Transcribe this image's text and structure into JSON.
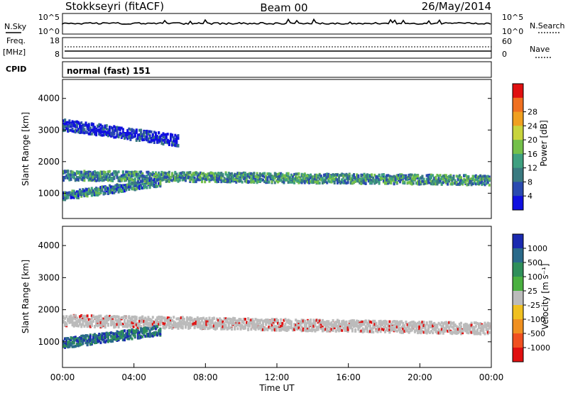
{
  "header": {
    "radar_title": "Stokkseyri (fitACF)",
    "beam_title": "Beam 00",
    "date": "26/May/2014"
  },
  "noise_panel": {
    "left_label": "N.Sky",
    "left_ticks": [
      "10^5",
      "10^0"
    ],
    "right_ticks": [
      "10^5",
      "10^0"
    ],
    "right_label": "N.Search"
  },
  "freq_panel": {
    "left_label_1": "Freq.",
    "left_label_2": "[MHz]",
    "left_ticks": [
      "18",
      "8"
    ],
    "right_ticks": [
      "60",
      "0"
    ],
    "right_label": "Nave"
  },
  "cpid_panel": {
    "label": "CPID",
    "value": "normal (fast) 151"
  },
  "colors": {
    "power_scale": [
      "#1010e0",
      "#2a4ab0",
      "#3a7a80",
      "#3fa080",
      "#74c04a",
      "#c8d43c",
      "#f0a020",
      "#f07020",
      "#e01010"
    ],
    "velocity_scale": [
      "#1a2ab0",
      "#2a6a8a",
      "#2f8f5a",
      "#4ab040",
      "#bbbbbb",
      "#f0c020",
      "#f09020",
      "#f05020",
      "#e01010"
    ]
  },
  "chart_data": [
    {
      "type": "heatmap",
      "name": "power_panel",
      "ylabel": "Slant Range [km]",
      "yticks": [
        "1000",
        "2000",
        "3000",
        "4000"
      ],
      "ylim": [
        200,
        4600
      ],
      "colorbar_label": "Power [dB]",
      "colorbar_ticks": [
        "4",
        "8",
        "12",
        "16",
        "20",
        "24",
        "28"
      ],
      "clim": [
        0,
        32
      ],
      "echo_bands": [
        {
          "t_start": 0,
          "t_end": 24,
          "range_center_start": 1600,
          "range_center_end": 1450,
          "thickness_km": 300,
          "power_db": 14
        },
        {
          "t_start": 0,
          "t_end": 5.5,
          "range_center_start": 950,
          "range_center_end": 1400,
          "thickness_km": 250,
          "power_db": 12
        },
        {
          "t_start": 0,
          "t_end": 6.5,
          "range_center_start": 3200,
          "range_center_end": 2700,
          "thickness_km": 350,
          "power_db": 5
        }
      ]
    },
    {
      "type": "heatmap",
      "name": "velocity_panel",
      "ylabel": "Slant Range [km]",
      "yticks": [
        "1000",
        "2000",
        "3000",
        "4000"
      ],
      "ylim": [
        200,
        4600
      ],
      "xlabel": "Time UT",
      "xticks": [
        "00:00",
        "04:00",
        "08:00",
        "12:00",
        "16:00",
        "20:00",
        "00:00"
      ],
      "xlim": [
        0,
        24
      ],
      "colorbar_label": "Velocity [m s⁻¹]",
      "colorbar_ticks": [
        "1000",
        "500",
        "100",
        "25",
        "-25",
        "-100",
        "-500",
        "-1000"
      ],
      "echo_bands": [
        {
          "t_start": 0,
          "t_end": 24,
          "range_center_start": 1700,
          "range_center_end": 1450,
          "thickness_km": 350,
          "velocity": 0
        },
        {
          "t_start": 0,
          "t_end": 5.5,
          "range_center_start": 1000,
          "range_center_end": 1400,
          "thickness_km": 300,
          "velocity": 150
        }
      ]
    }
  ]
}
